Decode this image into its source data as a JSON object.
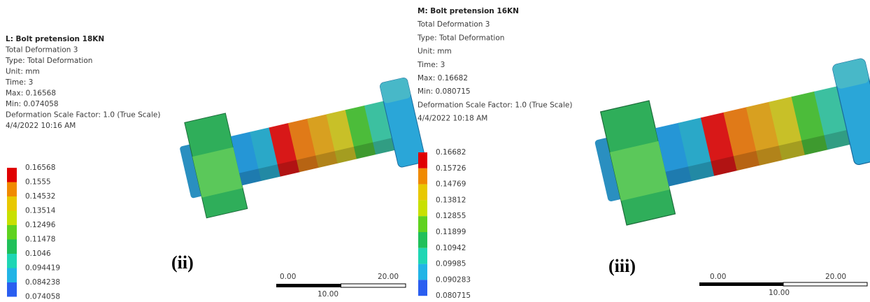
{
  "panels": [
    {
      "header": [
        "L: Bolt pretension 18KN",
        "Total Deformation 3",
        "Type: Total Deformation",
        "Unit: mm",
        "Time: 3",
        "Max: 0.16568",
        "Min: 0.074058",
        "Deformation Scale Factor: 1.0 (True Scale)",
        "4/4/2022 10:16 AM"
      ],
      "legend": [
        "0.16568",
        "0.1555",
        "0.14532",
        "0.13514",
        "0.12496",
        "0.11478",
        "0.1046",
        "0.094419",
        "0.084238",
        "0.074058"
      ],
      "scale": {
        "left": "0.00",
        "right": "20.00",
        "middle": "10.00"
      },
      "tag": "(ii)"
    },
    {
      "header": [
        "M: Bolt pretension 16KN",
        "Total Deformation 3",
        "Type: Total Deformation",
        "Unit: mm",
        "Time: 3",
        "Max: 0.16682",
        "Min: 0.080715",
        "Deformation Scale Factor: 1.0 (True Scale)",
        "4/4/2022 10:18 AM"
      ],
      "legend": [
        "0.16682",
        "0.15726",
        "0.14769",
        "0.13812",
        "0.12855",
        "0.11899",
        "0.10942",
        "0.09985",
        "0.090283",
        "0.080715"
      ],
      "scale": {
        "left": "0.00",
        "right": "20.00",
        "middle": "10.00"
      },
      "tag": "(iii)"
    }
  ]
}
